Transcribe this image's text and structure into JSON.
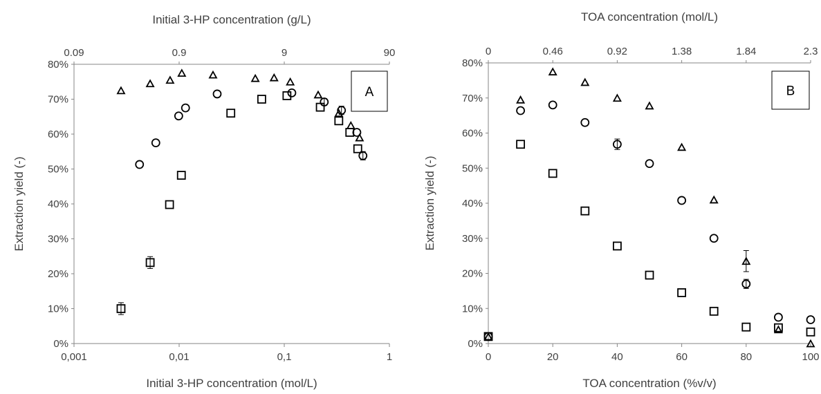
{
  "chart_data": [
    {
      "type": "scatter",
      "panel_label": "A",
      "xlabel": "Initial  3-HP concentration (mol/L)",
      "x2label": "Initial 3-HP concentration (g/L)",
      "ylabel": "Extraction yield (-)",
      "xscale": "log",
      "xlim": [
        0.001,
        1
      ],
      "x_ticks": [
        "0,001",
        "0,01",
        "0,1",
        "1"
      ],
      "x2lim": [
        0.09,
        90
      ],
      "x2_ticks": [
        "0.09",
        "0.9",
        "9",
        "90"
      ],
      "ylim": [
        0,
        0.8
      ],
      "y_ticks": [
        "0%",
        "10%",
        "20%",
        "30%",
        "40%",
        "50%",
        "60%",
        "70%",
        "80%"
      ],
      "grid": false,
      "legend": "none",
      "series": [
        {
          "marker": "triangle",
          "x": [
            0.0028,
            0.0053,
            0.0082,
            0.0106,
            0.021,
            0.053,
            0.08,
            0.114,
            0.21,
            0.33,
            0.43,
            0.52
          ],
          "y": [
            0.725,
            0.745,
            0.755,
            0.775,
            0.77,
            0.76,
            0.762,
            0.75,
            0.713,
            0.66,
            0.625,
            0.59
          ]
        },
        {
          "marker": "circle",
          "x": [
            0.0042,
            0.006,
            0.0099,
            0.0115,
            0.023,
            0.118,
            0.24,
            0.35,
            0.49,
            0.56
          ],
          "y": [
            0.513,
            0.575,
            0.652,
            0.675,
            0.715,
            0.718,
            0.692,
            0.668,
            0.605,
            0.538
          ],
          "error": [
            0,
            0,
            0,
            0,
            0,
            0,
            0.01,
            0.012,
            0,
            0.012
          ]
        },
        {
          "marker": "square",
          "x": [
            0.0028,
            0.0053,
            0.0081,
            0.0105,
            0.031,
            0.061,
            0.106,
            0.22,
            0.33,
            0.42,
            0.5
          ],
          "y": [
            0.1,
            0.232,
            0.398,
            0.482,
            0.66,
            0.7,
            0.71,
            0.677,
            0.638,
            0.605,
            0.558
          ],
          "error": [
            0.017,
            0.017,
            0,
            0,
            0,
            0,
            0,
            0,
            0,
            0,
            0
          ]
        }
      ]
    },
    {
      "type": "scatter",
      "panel_label": "B",
      "xlabel": "TOA concentration (%v/v)",
      "x2label": "TOA concentration (mol/L)",
      "ylabel": "Extraction yield (-)",
      "xlim": [
        0,
        100
      ],
      "x_ticks": [
        "0",
        "20",
        "40",
        "60",
        "80",
        "100"
      ],
      "x2lim": [
        0,
        2.3
      ],
      "x2_ticks": [
        "0",
        "0.46",
        "0.92",
        "1.38",
        "1.84",
        "2.3"
      ],
      "ylim": [
        0,
        0.8
      ],
      "y_ticks": [
        "0%",
        "10%",
        "20%",
        "30%",
        "40%",
        "50%",
        "60%",
        "70%",
        "80%"
      ],
      "grid": false,
      "legend": "none",
      "series": [
        {
          "marker": "triangle",
          "x": [
            0,
            10,
            20,
            30,
            40,
            50,
            60,
            70,
            80,
            90,
            100
          ],
          "y": [
            0.02,
            0.695,
            0.775,
            0.745,
            0.7,
            0.678,
            0.56,
            0.41,
            0.235,
            0.04,
            0.0
          ],
          "error": [
            0,
            0,
            0,
            0,
            0,
            0,
            0,
            0,
            0.03,
            0,
            0
          ]
        },
        {
          "marker": "circle",
          "x": [
            0,
            10,
            20,
            30,
            40,
            50,
            60,
            70,
            80,
            90,
            100
          ],
          "y": [
            0.02,
            0.664,
            0.68,
            0.63,
            0.568,
            0.513,
            0.408,
            0.3,
            0.17,
            0.075,
            0.068
          ],
          "error": [
            0,
            0,
            0,
            0,
            0.015,
            0,
            0,
            0,
            0.013,
            0,
            0
          ]
        },
        {
          "marker": "square",
          "x": [
            0,
            10,
            20,
            30,
            40,
            50,
            60,
            70,
            80,
            90,
            100
          ],
          "y": [
            0.02,
            0.568,
            0.485,
            0.378,
            0.278,
            0.195,
            0.145,
            0.092,
            0.047,
            0.045,
            0.033
          ]
        }
      ]
    }
  ]
}
